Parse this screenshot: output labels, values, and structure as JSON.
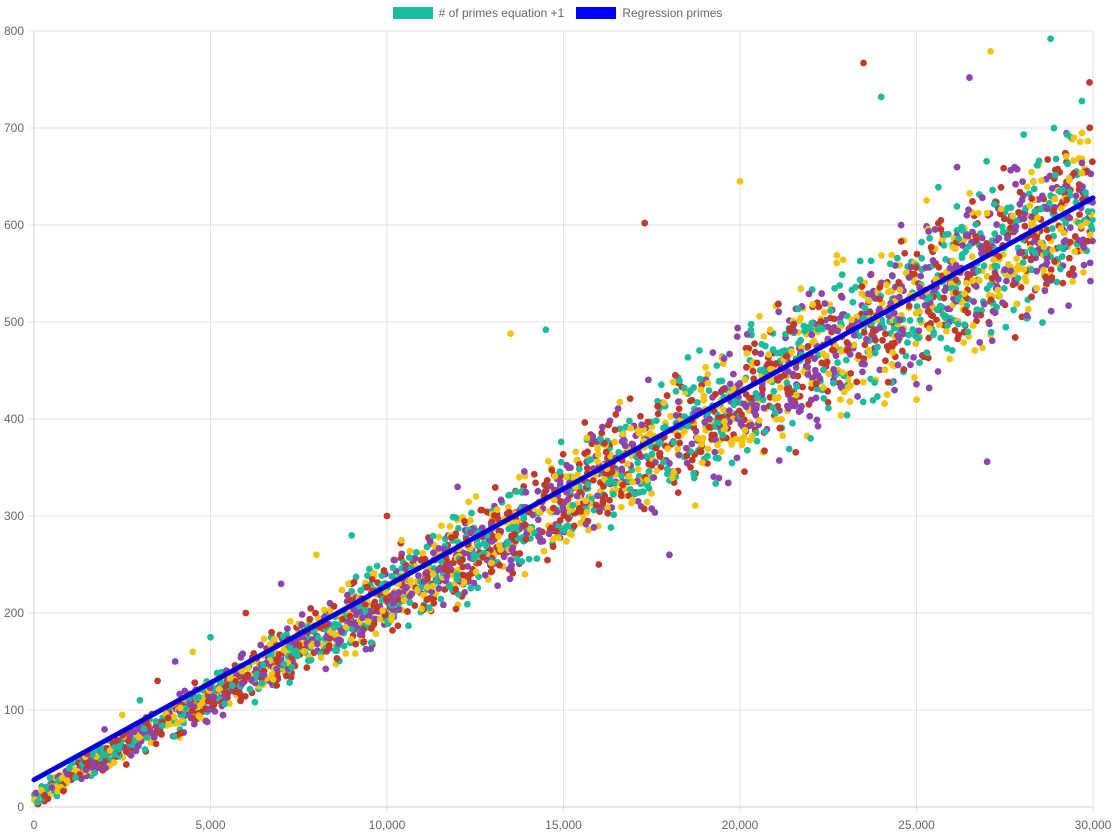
{
  "chart_data": {
    "type": "scatter",
    "legend": {
      "position": "top",
      "items": [
        {
          "name": "# of primes equation +1",
          "color": "#1abc9c"
        },
        {
          "name": "Regression primes",
          "color": "#0000ff"
        }
      ]
    },
    "xlim": [
      0,
      30000
    ],
    "ylim": [
      0,
      800
    ],
    "x_ticks": [
      "0",
      "5,000",
      "10,000",
      "15,000",
      "20,000",
      "25,000",
      "30,000"
    ],
    "y_ticks": [
      "0",
      "100",
      "200",
      "300",
      "400",
      "500",
      "600",
      "700",
      "800"
    ],
    "grid": true,
    "point_colors": [
      "#1abc9c",
      "#c0392b",
      "#8e44ad",
      "#f1c40f"
    ],
    "series": [
      {
        "name": "# of primes equation +1",
        "kind": "points",
        "trend": {
          "slope": 0.0205,
          "intercept": 10
        },
        "points": [
          [
            100,
            5
          ],
          [
            300,
            12
          ],
          [
            500,
            20
          ],
          [
            800,
            30
          ],
          [
            1000,
            40
          ],
          [
            1500,
            55
          ],
          [
            2000,
            80
          ],
          [
            2500,
            95
          ],
          [
            3000,
            110
          ],
          [
            3500,
            130
          ],
          [
            4000,
            150
          ],
          [
            4500,
            160
          ],
          [
            5000,
            175
          ],
          [
            6000,
            200
          ],
          [
            7000,
            230
          ],
          [
            8000,
            260
          ],
          [
            9000,
            280
          ],
          [
            10000,
            300
          ],
          [
            12000,
            330
          ],
          [
            13500,
            488
          ],
          [
            14500,
            492
          ],
          [
            17300,
            602
          ],
          [
            18000,
            260
          ],
          [
            20000,
            645
          ],
          [
            24000,
            732
          ],
          [
            23500,
            767
          ],
          [
            26500,
            752
          ],
          [
            27100,
            779
          ],
          [
            28800,
            792
          ],
          [
            29900,
            747
          ],
          [
            27000,
            356
          ],
          [
            25000,
            420
          ],
          [
            22000,
            380
          ],
          [
            16000,
            250
          ]
        ]
      },
      {
        "name": "Regression primes",
        "kind": "line",
        "x": [
          0,
          30000
        ],
        "y": [
          28,
          628
        ]
      }
    ]
  }
}
